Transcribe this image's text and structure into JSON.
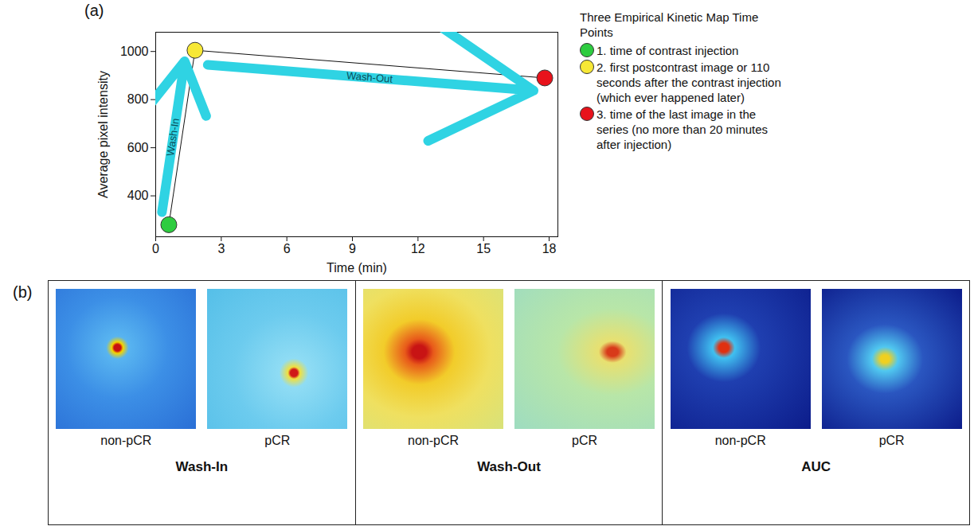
{
  "chart_data": {
    "type": "line",
    "panel_label": "(a)",
    "xlabel": "Time (min)",
    "ylabel": "Average pixel intensity",
    "x": [
      0.6,
      1.8,
      17.8
    ],
    "values": [
      280,
      1005,
      890
    ],
    "colors": [
      "#2ecc40",
      "#f7e836",
      "#e8121b"
    ],
    "xlim": [
      0,
      18.4
    ],
    "ylim": [
      230,
      1080
    ],
    "xticks": [
      0,
      3,
      6,
      9,
      12,
      15,
      18
    ],
    "yticks": [
      400,
      600,
      800,
      1000
    ],
    "annotations": [
      "Wash-In",
      "Wash-Out"
    ],
    "legend": "right",
    "legend_title": "Three Empirical Kinetic Map Time Points",
    "legend_entries": [
      "1. time of contrast injection",
      "2. first postcontrast image or 110 seconds after the contrast injection (which ever happened later)",
      "3. time of the last image in the series (no more than 20 minutes after injection)"
    ]
  },
  "panel_b": {
    "panel_label": "(b)",
    "groups": [
      {
        "title": "Wash-In",
        "images": [
          "non-pCR",
          "pCR"
        ]
      },
      {
        "title": "Wash-Out",
        "images": [
          "non-pCR",
          "pCR"
        ]
      },
      {
        "title": "AUC",
        "images": [
          "non-pCR",
          "pCR"
        ]
      }
    ]
  }
}
